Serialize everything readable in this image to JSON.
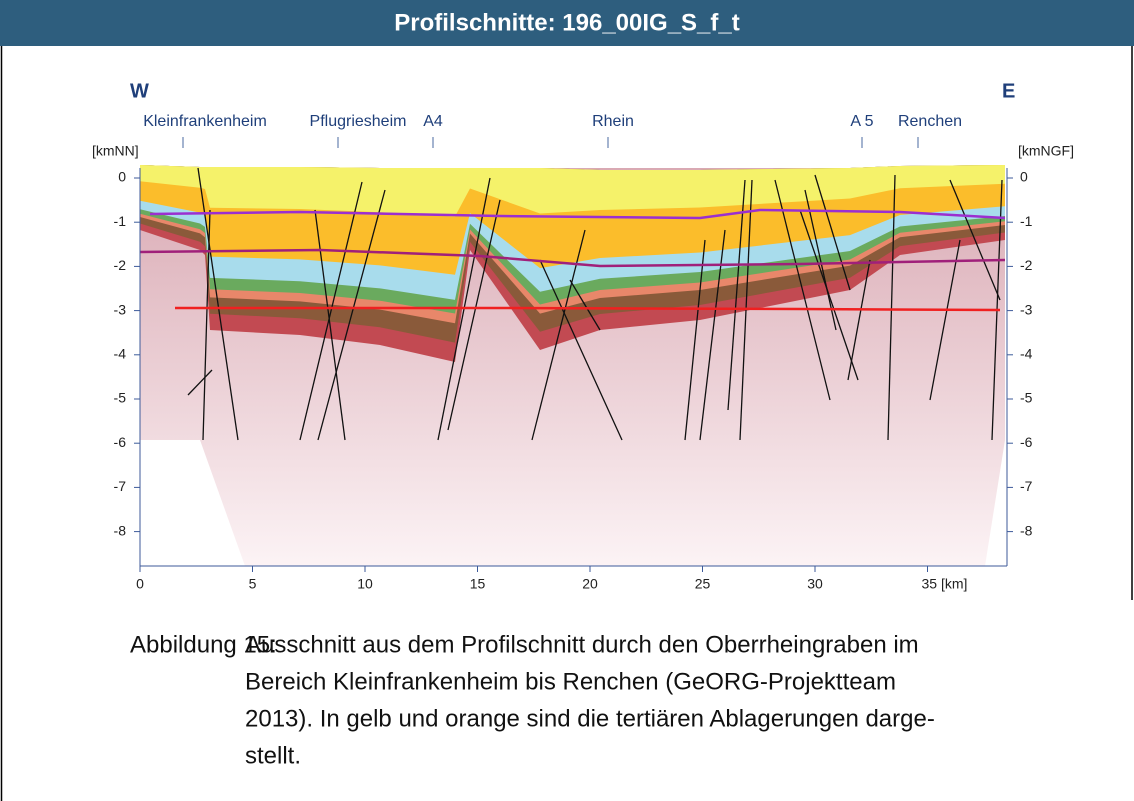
{
  "header": {
    "title": "Profilschnitte: 196_00IG_S_f_t"
  },
  "figure": {
    "west": "W",
    "east": "E",
    "places": [
      "Kleinfrankenheim",
      "Pflugriesheim",
      "A4",
      "Rhein",
      "A 5",
      "Renchen"
    ],
    "left_unit": "[kmNN]",
    "right_unit": "[kmNGF]",
    "y_ticks": [
      "0",
      "-1",
      "-2",
      "-3",
      "-4",
      "-5",
      "-6",
      "-7",
      "-8"
    ],
    "x_ticks": [
      "0",
      "5",
      "10",
      "15",
      "20",
      "25",
      "30",
      "35 [km]"
    ]
  },
  "caption": {
    "label": "Abbildung 15:",
    "lines": [
      "Ausschnitt aus dem Profilschnitt durch den Oberrheingraben im",
      "Bereich Kleinfrankenheim bis Renchen (GeORG-Projektteam",
      "2013). In gelb und orange sind die tertiären Ablagerungen darge-",
      "stellt."
    ]
  }
}
